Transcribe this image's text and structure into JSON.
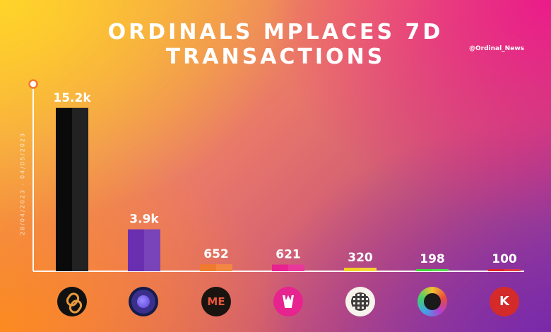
{
  "header": {
    "title": "ORDINALS MPLACES 7D TRANSACTIONS",
    "handle": "@Ordinal_News",
    "date_range": "28/04/2023 - 04/05/2023"
  },
  "icons": [
    "ordinals-wallet-icon",
    "magic-circle-icon",
    "magic-eden-icon",
    "gamma-icon",
    "ordswap-icon",
    "generative-ring-icon",
    "ordinalsbot-icon"
  ],
  "chart_data": {
    "type": "bar",
    "values": [
      15200,
      3900,
      652,
      621,
      320,
      198,
      100
    ],
    "data_labels": [
      "15.2k",
      "3.9k",
      "652",
      "621",
      "320",
      "198",
      "100"
    ],
    "colors": [
      "#0a0a0a",
      "#6a2fb0",
      "#f07a2e",
      "#e8228f",
      "#f6d21e",
      "#3fd93a",
      "#e0202a"
    ],
    "ylim": [
      0,
      16500
    ],
    "grid": false,
    "legend": "none"
  }
}
